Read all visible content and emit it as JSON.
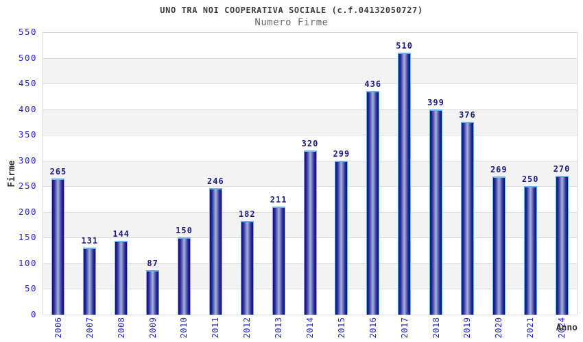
{
  "title": "UNO TRA NOI COOPERATIVA SOCIALE (c.f.04132050727)",
  "subtitle": "Numero Firme",
  "chart_data": {
    "type": "bar",
    "categories": [
      "2006",
      "2007",
      "2008",
      "2009",
      "2010",
      "2011",
      "2012",
      "2013",
      "2014",
      "2015",
      "2016",
      "2017",
      "2018",
      "2019",
      "2020",
      "2021",
      "2024"
    ],
    "values": [
      265,
      131,
      144,
      87,
      150,
      246,
      182,
      211,
      320,
      299,
      436,
      510,
      399,
      376,
      269,
      250,
      270
    ],
    "xlabel": "Anno",
    "ylabel": "Firme",
    "ylim": [
      0,
      550
    ],
    "ytick_step": 50,
    "legend": "none",
    "grid": "horizontal-bands",
    "colors": {
      "title": "#3b3b3b",
      "subtitle": "#6b6b6b",
      "axis_title": "#333333",
      "tick_label": "#2323cc",
      "value_label": "#1c1c80",
      "band_alt": "#f3f3f3",
      "band_base": "#ffffff",
      "grid_line": "#dcdcdc",
      "plot_border": "#d6d6d6",
      "bar_edge": "#0e0e72",
      "bar_inner": "#2a2f9c",
      "bar_center": "#a2abd8",
      "bar_cap": "#6cb0ea"
    }
  }
}
